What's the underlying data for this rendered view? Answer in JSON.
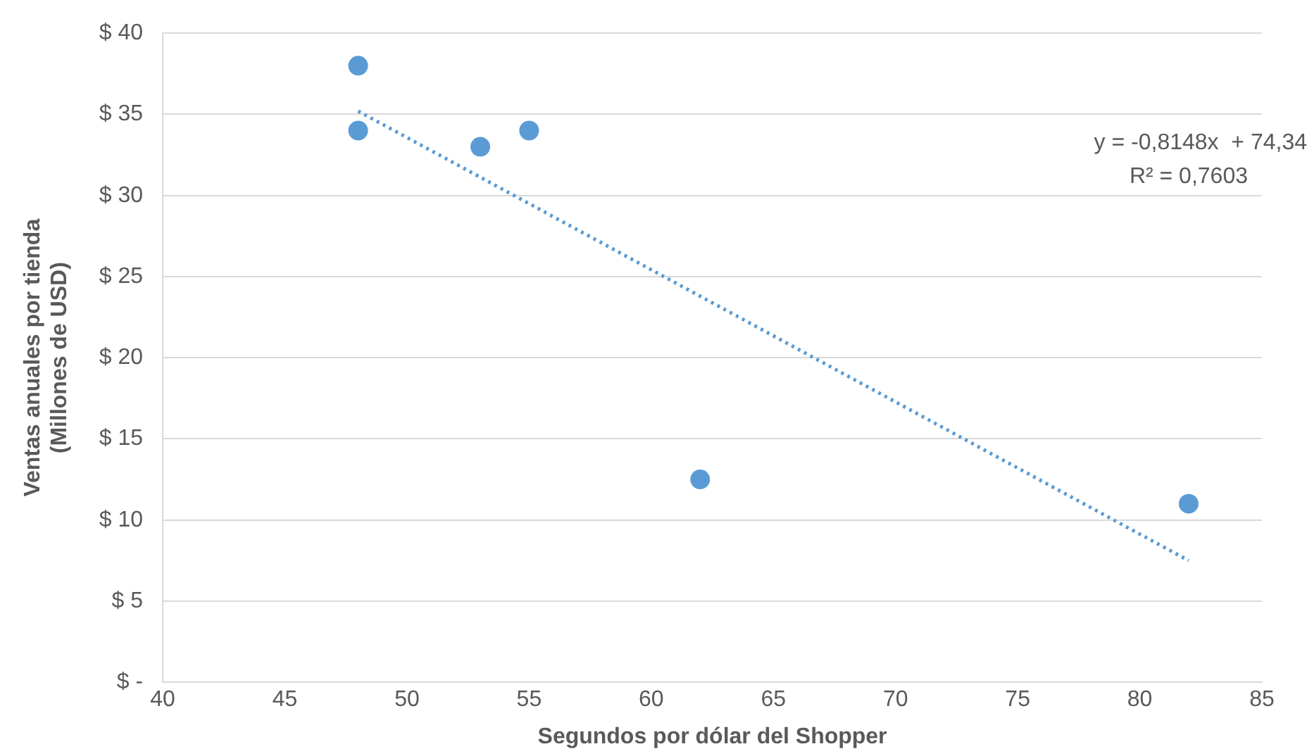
{
  "chart_data": {
    "type": "scatter",
    "xlabel": "Segundos por dólar del Shopper",
    "ylabel": "Ventas anuales por tienda\n(Millones de USD)",
    "series": [
      {
        "color": "#5b9bd5",
        "x": [
          48,
          48,
          53,
          55,
          62,
          82
        ],
        "values": [
          38,
          34,
          33,
          34,
          12.5,
          11
        ],
        "marker": "circle"
      },
      {
        "type": "line",
        "color": "#5b9bd5",
        "x": [
          48,
          82
        ],
        "values": [
          35.2,
          7.5
        ],
        "marker": "none",
        "line_style": "dotted"
      }
    ],
    "xlim": [
      40,
      85
    ],
    "xticks": [
      40,
      45,
      50,
      55,
      60,
      65,
      70,
      75,
      80,
      85
    ],
    "ylim": [
      0,
      40
    ],
    "yticks": [
      {
        "value": 0,
        "label": "$ -"
      },
      {
        "value": 5,
        "label": "$ 5"
      },
      {
        "value": 10,
        "label": "$ 10"
      },
      {
        "value": 15,
        "label": "$ 15"
      },
      {
        "value": 20,
        "label": "$ 20"
      },
      {
        "value": 25,
        "label": "$ 25"
      },
      {
        "value": 30,
        "label": "$ 30"
      },
      {
        "value": 35,
        "label": "$ 35"
      },
      {
        "value": 40,
        "label": "$ 40"
      }
    ],
    "grid": "y",
    "legend": false,
    "annotations": [
      "y = -0,8148x  + 74,34",
      "R² = 0,7603"
    ]
  }
}
